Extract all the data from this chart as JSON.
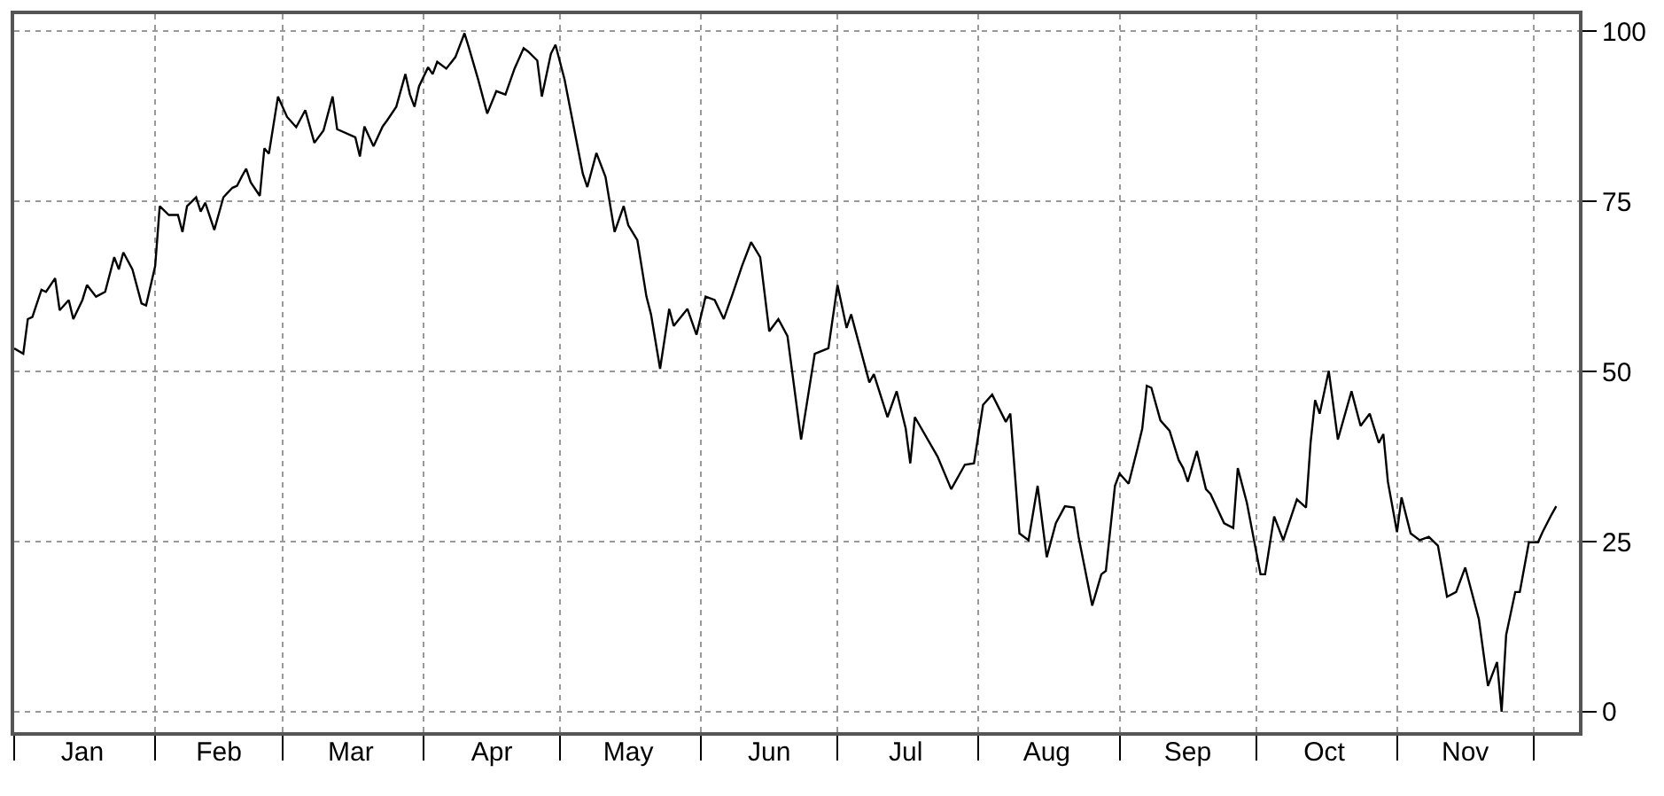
{
  "chart_data": {
    "type": "line",
    "color": "#000000",
    "line_style": "solid",
    "grid": true,
    "x": [
      "--01-01",
      "--01-03",
      "--01-04",
      "--01-05",
      "--01-07",
      "--01-08",
      "--01-10",
      "--01-11",
      "--01-13",
      "--01-14",
      "--01-16",
      "--01-17",
      "--01-19",
      "--01-21",
      "--01-23",
      "--01-24",
      "--01-25",
      "--01-27",
      "--01-29",
      "--01-30",
      "--02-01",
      "--02-02",
      "--02-04",
      "--02-06",
      "--02-07",
      "--02-08",
      "--02-10",
      "--02-11",
      "--02-12",
      "--02-14",
      "--02-16",
      "--02-18",
      "--02-19",
      "--02-20",
      "--02-21",
      "--02-22",
      "--02-24",
      "--02-25",
      "--02-26",
      "--02-28",
      "--03-02",
      "--03-04",
      "--03-06",
      "--03-08",
      "--03-10",
      "--03-12",
      "--03-13",
      "--03-17",
      "--03-18",
      "--03-19",
      "--03-21",
      "--03-23",
      "--03-24",
      "--03-26",
      "--03-28",
      "--03-29",
      "--03-30",
      "--03-31",
      "--04-02",
      "--04-03",
      "--04-04",
      "--04-06",
      "--04-08",
      "--04-10",
      "--04-11",
      "--04-13",
      "--04-15",
      "--04-17",
      "--04-19",
      "--04-21",
      "--04-23",
      "--04-24",
      "--04-26",
      "--04-27",
      "--04-29",
      "--04-30",
      "--05-02",
      "--05-06",
      "--05-07",
      "--05-09",
      "--05-11",
      "--05-13",
      "--05-15",
      "--05-16",
      "--05-18",
      "--05-20",
      "--05-21",
      "--05-23",
      "--05-25",
      "--05-26",
      "--05-29",
      "--05-31",
      "--06-02",
      "--06-04",
      "--06-06",
      "--06-08",
      "--06-10",
      "--06-12",
      "--06-14",
      "--06-16",
      "--06-18",
      "--06-20",
      "--06-23",
      "--06-26",
      "--06-29",
      "--07-01",
      "--07-03",
      "--07-04",
      "--07-08",
      "--07-09",
      "--07-12",
      "--07-14",
      "--07-16",
      "--07-17",
      "--07-18",
      "--07-23",
      "--07-26",
      "--07-29",
      "--07-31",
      "--08-02",
      "--08-04",
      "--08-07",
      "--08-08",
      "--08-10",
      "--08-12",
      "--08-14",
      "--08-16",
      "--08-18",
      "--08-20",
      "--08-22",
      "--08-23",
      "--08-26",
      "--08-28",
      "--08-29",
      "--08-31",
      "--09-01",
      "--09-03",
      "--09-05",
      "--09-06",
      "--09-07",
      "--09-08",
      "--09-10",
      "--09-12",
      "--09-14",
      "--09-15",
      "--09-16",
      "--09-18",
      "--09-20",
      "--09-21",
      "--09-24",
      "--09-26",
      "--09-27",
      "--09-29",
      "--10-02",
      "--10-03",
      "--10-05",
      "--10-07",
      "--10-10",
      "--10-12",
      "--10-13",
      "--10-14",
      "--10-15",
      "--10-17",
      "--10-19",
      "--10-22",
      "--10-24",
      "--10-26",
      "--10-28",
      "--10-29",
      "--10-30",
      "--11-01",
      "--11-02",
      "--11-04",
      "--11-06",
      "--11-08",
      "--11-10",
      "--11-12",
      "--11-14",
      "--11-16",
      "--11-19",
      "--11-21",
      "--11-23",
      "--11-24",
      "--11-25",
      "--11-27",
      "--11-28",
      "--11-30",
      "--12-02",
      "--12-03",
      "--12-05",
      "--12-06"
    ],
    "values": [
      53.4,
      52.6,
      57.7,
      58,
      62,
      61.7,
      63.7,
      59,
      60.5,
      57.7,
      60.5,
      62.7,
      61,
      61.7,
      66.8,
      65,
      67.5,
      65,
      60,
      59.7,
      65.5,
      74.3,
      73,
      73,
      70.5,
      74.3,
      75.6,
      73.5,
      74.8,
      70.8,
      75.6,
      77,
      77.3,
      78.6,
      79.8,
      77.8,
      75.8,
      82.8,
      82,
      90.4,
      87.4,
      85.9,
      88.4,
      83.6,
      85.4,
      90.4,
      85.6,
      84.4,
      81.6,
      86,
      83.1,
      86,
      86.9,
      88.9,
      93.7,
      90.7,
      88.9,
      91.9,
      94.7,
      93.7,
      95.5,
      94.5,
      96.2,
      99.7,
      97.5,
      92.9,
      87.9,
      91.2,
      90.7,
      94.5,
      97.5,
      97,
      95.7,
      90.4,
      96.7,
      98,
      92.9,
      79.1,
      77.1,
      82.1,
      78.6,
      70.5,
      74.3,
      71.5,
      69.3,
      61,
      58.4,
      50.4,
      59.2,
      56.7,
      59.2,
      55.4,
      61,
      60.5,
      57.7,
      61.5,
      65.5,
      69,
      66.8,
      55.9,
      57.7,
      55.2,
      40,
      52.6,
      53.4,
      62.7,
      56.4,
      58.4,
      48.4,
      49.6,
      43.3,
      47.1,
      41.6,
      36.5,
      43.3,
      37.5,
      32.7,
      36.3,
      36.5,
      45.1,
      46.6,
      42.6,
      43.8,
      26.2,
      25.2,
      33.2,
      22.7,
      27.7,
      30.2,
      30,
      25.7,
      15.6,
      20.2,
      20.7,
      33.2,
      35,
      33.5,
      38.8,
      41.6,
      47.9,
      47.6,
      42.8,
      41.3,
      37,
      35.8,
      33.8,
      38.3,
      32.7,
      32,
      27.7,
      27,
      35.8,
      30.7,
      20.2,
      20.2,
      28.7,
      25.2,
      31.2,
      30,
      39.5,
      45.8,
      43.8,
      50.1,
      40,
      47.1,
      42,
      43.8,
      39.5,
      40.8,
      33.8,
      26.4,
      31.5,
      26.2,
      25.2,
      25.7,
      24.4,
      16.9,
      17.6,
      21.2,
      13.6,
      3.8,
      7.3,
      0,
      11.3,
      17.6,
      17.6,
      24.9,
      24.9,
      26.4,
      29,
      30.2
    ],
    "xlim": [
      "--01-01",
      "--12-11"
    ],
    "xticks": [
      {
        "value": "--01-01",
        "label": null
      },
      {
        "value": "--02-01",
        "label": null
      },
      {
        "value": "--03-01",
        "label": null
      },
      {
        "value": "--04-01",
        "label": null
      },
      {
        "value": "--05-01",
        "label": null
      },
      {
        "value": "--06-01",
        "label": null
      },
      {
        "value": "--07-01",
        "label": null
      },
      {
        "value": "--08-01",
        "label": null
      },
      {
        "value": "--09-01",
        "label": null
      },
      {
        "value": "--10-01",
        "label": null
      },
      {
        "value": "--11-01",
        "label": null
      },
      {
        "value": "--12-01",
        "label": null
      },
      {
        "value": "--01-16",
        "label": "Jan"
      },
      {
        "value": "--02-15",
        "label": "Feb"
      },
      {
        "value": "--03-16",
        "label": "Mar"
      },
      {
        "value": "--04-16",
        "label": "Apr"
      },
      {
        "value": "--05-16",
        "label": "May"
      },
      {
        "value": "--06-16",
        "label": "Jun"
      },
      {
        "value": "--07-16",
        "label": "Jul"
      },
      {
        "value": "--08-16",
        "label": "Aug"
      },
      {
        "value": "--09-16",
        "label": "Sep"
      },
      {
        "value": "--10-16",
        "label": "Oct"
      },
      {
        "value": "--11-16",
        "label": "Nov"
      }
    ],
    "ylim": [
      -3,
      102.5
    ],
    "yticks": [
      0,
      25,
      50,
      75,
      100
    ]
  }
}
